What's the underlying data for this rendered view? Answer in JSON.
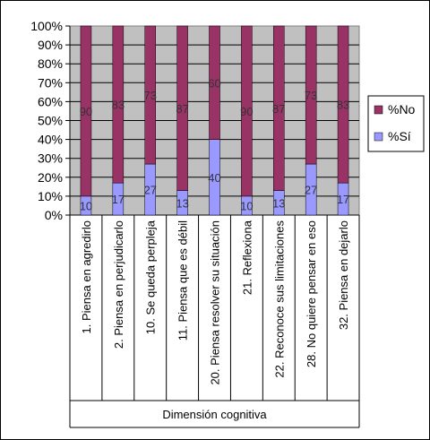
{
  "chart_data": {
    "type": "bar",
    "stacked": true,
    "percent": true,
    "title": "",
    "xlabel": "Dimensión cognitiva",
    "ylabel": "",
    "ylim": [
      0,
      100
    ],
    "yticks": [
      "0%",
      "10%",
      "20%",
      "30%",
      "40%",
      "50%",
      "60%",
      "70%",
      "80%",
      "90%",
      "100%"
    ],
    "legend_position": "right",
    "grid": true,
    "categories": [
      "1. Piensa en agredirlo",
      "2. Piensa en perjudicarlo",
      "10. Se queda perpleja",
      "11. Piensa que es débil",
      "20. Piensa resolver su situación",
      "21. Reflexiona",
      "22. Reconoce sus limitaciones",
      "28. No quiere pensar en eso",
      "32. Piensa en dejarlo"
    ],
    "series": [
      {
        "name": "%Sí",
        "color": "#9999ff",
        "values": [
          10,
          17,
          27,
          13,
          40,
          10,
          13,
          27,
          17
        ]
      },
      {
        "name": "%No",
        "color": "#993366",
        "values": [
          90,
          83,
          73,
          87,
          60,
          90,
          87,
          73,
          83
        ]
      }
    ],
    "legend": [
      {
        "name": "%No",
        "color": "#993366"
      },
      {
        "name": "%Sí",
        "color": "#9999ff"
      }
    ]
  }
}
